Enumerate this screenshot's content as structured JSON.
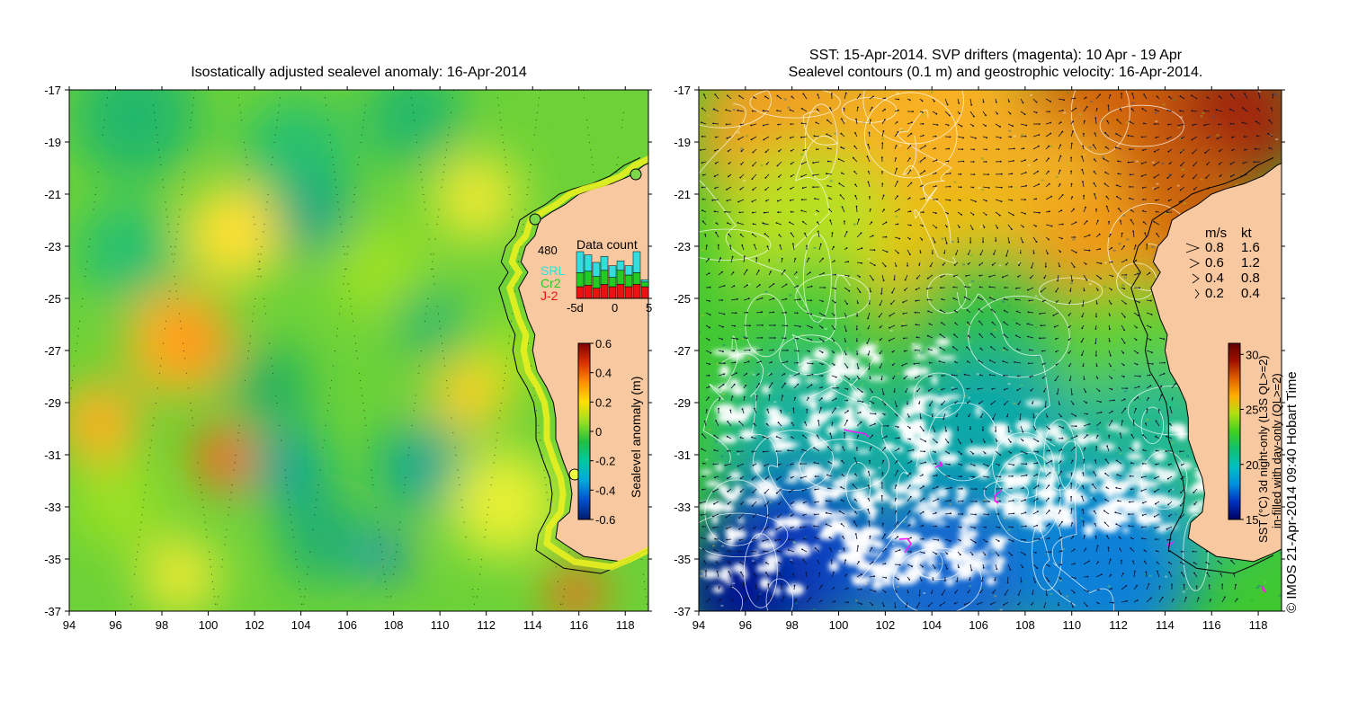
{
  "left_panel": {
    "title": "Isostatically adjusted sealevel anomaly: 16-Apr-2014",
    "colorbar": {
      "label": "Sealevel anomaly (m)",
      "ticks": [
        "0.6",
        "0.4",
        "0.2",
        "0",
        "-0.2",
        "-0.4",
        "-0.6"
      ],
      "range": [
        -0.6,
        0.6
      ]
    },
    "data_count": {
      "title": "Data count",
      "max_label": "480",
      "legend": [
        {
          "label": "SRL",
          "color": "#33dddd"
        },
        {
          "label": "Cr2",
          "color": "#22cc22"
        },
        {
          "label": "J-2",
          "color": "#ee1111"
        }
      ],
      "x_ticks": [
        "-5d",
        "0",
        "5"
      ],
      "bars": [
        {
          "j2": 0.25,
          "cr2": 0.3,
          "srl": 0.45
        },
        {
          "j2": 0.28,
          "cr2": 0.3,
          "srl": 0.35
        },
        {
          "j2": 0.22,
          "cr2": 0.25,
          "srl": 0.3
        },
        {
          "j2": 0.3,
          "cr2": 0.3,
          "srl": 0.3
        },
        {
          "j2": 0.25,
          "cr2": 0.2,
          "srl": 0.25
        },
        {
          "j2": 0.3,
          "cr2": 0.3,
          "srl": 0.2
        },
        {
          "j2": 0.25,
          "cr2": 0.25,
          "srl": 0.2
        },
        {
          "j2": 0.3,
          "cr2": 0.25,
          "srl": 0.45
        },
        {
          "j2": 0.25,
          "cr2": 0.1,
          "srl": 0.05
        }
      ]
    }
  },
  "right_panel": {
    "title_line1": "SST: 15-Apr-2014. SVP drifters (magenta): 10 Apr - 19 Apr",
    "title_line2": "Sealevel contours (0.1 m) and geostrophic velocity: 16-Apr-2014.",
    "colorbar": {
      "label_line1": "SST (°C) 3d night-only (L3S QL>=2)",
      "label_line2": "in-filled with day-only (QL>=2)",
      "ticks": [
        "30",
        "25",
        "20",
        "15"
      ],
      "range": [
        15,
        31
      ]
    },
    "velocity_legend": {
      "header_ms": "m/s",
      "header_kt": "kt",
      "rows": [
        {
          "ms": "0.8",
          "kt": "1.6"
        },
        {
          "ms": "0.6",
          "kt": "1.2"
        },
        {
          "ms": "0.4",
          "kt": "0.8"
        },
        {
          "ms": "0.2",
          "kt": "0.4"
        }
      ]
    }
  },
  "axes": {
    "lon_ticks": [
      "94",
      "96",
      "98",
      "100",
      "102",
      "104",
      "106",
      "108",
      "110",
      "112",
      "114",
      "116",
      "118"
    ],
    "lat_ticks": [
      "-17",
      "-19",
      "-21",
      "-23",
      "-25",
      "-27",
      "-29",
      "-31",
      "-33",
      "-35",
      "-37"
    ],
    "lon_range": [
      94,
      119
    ],
    "lat_range": [
      -37,
      -17
    ]
  },
  "credit": "© IMOS 21-Apr-2014 09:40 Hobart Time",
  "colors": {
    "land": "#f8c8a0",
    "sla_scale": [
      "#001b6e",
      "#0050d0",
      "#00aadd",
      "#00c8a0",
      "#20c040",
      "#9be020",
      "#ffe000",
      "#ff9000",
      "#dd3000",
      "#800000"
    ],
    "sst_scale": [
      "#000060",
      "#0030c0",
      "#0090e0",
      "#00c0c0",
      "#10c070",
      "#40d020",
      "#b0e010",
      "#ffb000",
      "#e06000",
      "#a01000",
      "#600000"
    ]
  }
}
